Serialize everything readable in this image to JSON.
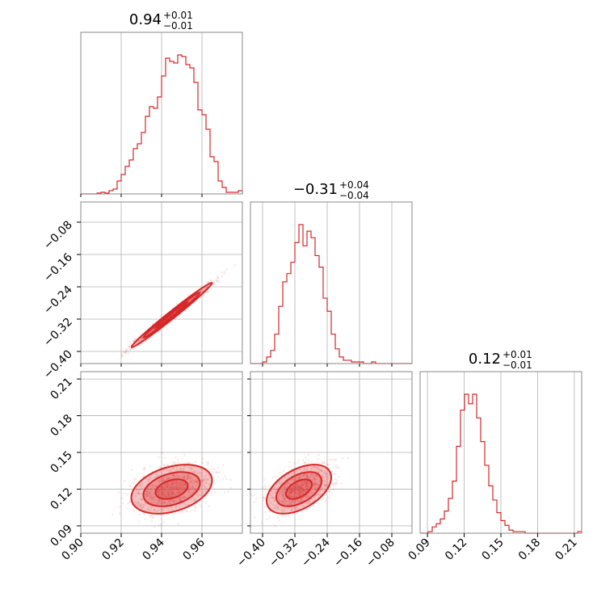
{
  "colors": {
    "accent": "#d62728",
    "grid": "#b0b0b0",
    "frame": "#8a8a8a"
  },
  "chart_data": {
    "type": "corner",
    "params": [
      {
        "id": "p0",
        "title": "0.94",
        "sup": "+0.01",
        "sub": "−0.01",
        "range": [
          0.9,
          0.98
        ],
        "ticks": [
          0.9,
          0.92,
          0.94,
          0.96
        ],
        "ticklabels": [
          "0.90",
          "0.92",
          "0.94",
          "0.96"
        ],
        "median": 0.945,
        "sigma": 0.01
      },
      {
        "id": "p1",
        "title": "−0.31",
        "sup": "+0.04",
        "sub": "−0.04",
        "range": [
          -0.43,
          -0.03
        ],
        "ticks": [
          -0.4,
          -0.32,
          -0.24,
          -0.16,
          -0.08
        ],
        "ticklabels": [
          "−0.40",
          "−0.32",
          "−0.24",
          "−0.16",
          "−0.08"
        ],
        "median": -0.31,
        "sigma": 0.04
      },
      {
        "id": "p2",
        "title": "0.12",
        "sup": "+0.01",
        "sub": "−0.01",
        "range": [
          0.084,
          0.216
        ],
        "ticks": [
          0.09,
          0.12,
          0.15,
          0.18,
          0.21
        ],
        "ticklabels": [
          "0.09",
          "0.12",
          "0.15",
          "0.18",
          "0.21"
        ],
        "median": 0.12,
        "sigma": 0.01
      }
    ],
    "histograms": [
      {
        "param": 0,
        "bins": [
          0.9,
          0.902,
          0.904,
          0.906,
          0.908,
          0.91,
          0.912,
          0.914,
          0.916,
          0.918,
          0.92,
          0.922,
          0.924,
          0.926,
          0.928,
          0.93,
          0.932,
          0.934,
          0.936,
          0.938,
          0.94,
          0.942,
          0.944,
          0.946,
          0.948,
          0.95,
          0.952,
          0.954,
          0.956,
          0.958,
          0.96,
          0.962,
          0.964,
          0.966,
          0.968,
          0.97,
          0.972,
          0.974,
          0.976,
          0.978,
          0.98
        ],
        "counts": [
          0,
          0,
          0,
          0,
          0.005,
          0.01,
          0.005,
          0.02,
          0.03,
          0.08,
          0.12,
          0.17,
          0.21,
          0.28,
          0.31,
          0.38,
          0.48,
          0.54,
          0.53,
          0.6,
          0.73,
          0.84,
          0.82,
          0.81,
          0.86,
          0.85,
          0.8,
          0.78,
          0.69,
          0.52,
          0.49,
          0.4,
          0.23,
          0.2,
          0.08,
          0.04,
          0.01,
          0.01,
          0.01,
          0.02
        ]
      },
      {
        "param": 1,
        "bins": [
          -0.43,
          -0.42,
          -0.41,
          -0.4,
          -0.39,
          -0.38,
          -0.37,
          -0.36,
          -0.35,
          -0.34,
          -0.33,
          -0.32,
          -0.31,
          -0.3,
          -0.29,
          -0.28,
          -0.27,
          -0.26,
          -0.25,
          -0.24,
          -0.23,
          -0.22,
          -0.21,
          -0.2,
          -0.19,
          -0.18,
          -0.17,
          -0.16,
          -0.15,
          -0.14,
          -0.13,
          -0.12,
          -0.11,
          -0.1,
          -0.09,
          -0.08,
          -0.07,
          -0.06,
          -0.05,
          -0.04,
          -0.03
        ],
        "counts": [
          0,
          0,
          0,
          0.01,
          0.04,
          0.08,
          0.18,
          0.35,
          0.5,
          0.55,
          0.62,
          0.74,
          0.85,
          0.72,
          0.81,
          0.77,
          0.66,
          0.59,
          0.4,
          0.32,
          0.18,
          0.09,
          0.04,
          0.02,
          0.02,
          0.01,
          0.01,
          0.01,
          0,
          0,
          0.01,
          0,
          0,
          0,
          0,
          0,
          0,
          0,
          0,
          0
        ]
      },
      {
        "param": 2,
        "bins": [
          0.084,
          0.0873,
          0.0906,
          0.0939,
          0.0972,
          0.1005,
          0.1038,
          0.1071,
          0.1104,
          0.1137,
          0.117,
          0.1203,
          0.1236,
          0.1269,
          0.1302,
          0.1335,
          0.1368,
          0.1401,
          0.1434,
          0.1467,
          0.15,
          0.1533,
          0.1566,
          0.1599,
          0.1632,
          0.1665,
          0.1698,
          0.1731,
          0.1764,
          0.1797,
          0.183,
          0.1863,
          0.1896,
          0.1929,
          0.1962,
          0.1995,
          0.2028,
          0.2061,
          0.2094,
          0.2127,
          0.216
        ],
        "counts": [
          0,
          0,
          0.01,
          0.04,
          0.06,
          0.09,
          0.14,
          0.22,
          0.33,
          0.55,
          0.78,
          0.88,
          0.82,
          0.88,
          0.73,
          0.58,
          0.43,
          0.3,
          0.21,
          0.13,
          0.08,
          0.05,
          0.02,
          0.01,
          0.01,
          0.01,
          0,
          0,
          0,
          0,
          0,
          0,
          0,
          0,
          0,
          0,
          0,
          0,
          0,
          0.01
        ]
      }
    ],
    "pairs": [
      {
        "x": 0,
        "y": 1,
        "correlation": 0.99
      },
      {
        "x": 0,
        "y": 2,
        "correlation": 0.35
      },
      {
        "x": 1,
        "y": 2,
        "correlation": 0.48
      }
    ],
    "grid": true
  }
}
